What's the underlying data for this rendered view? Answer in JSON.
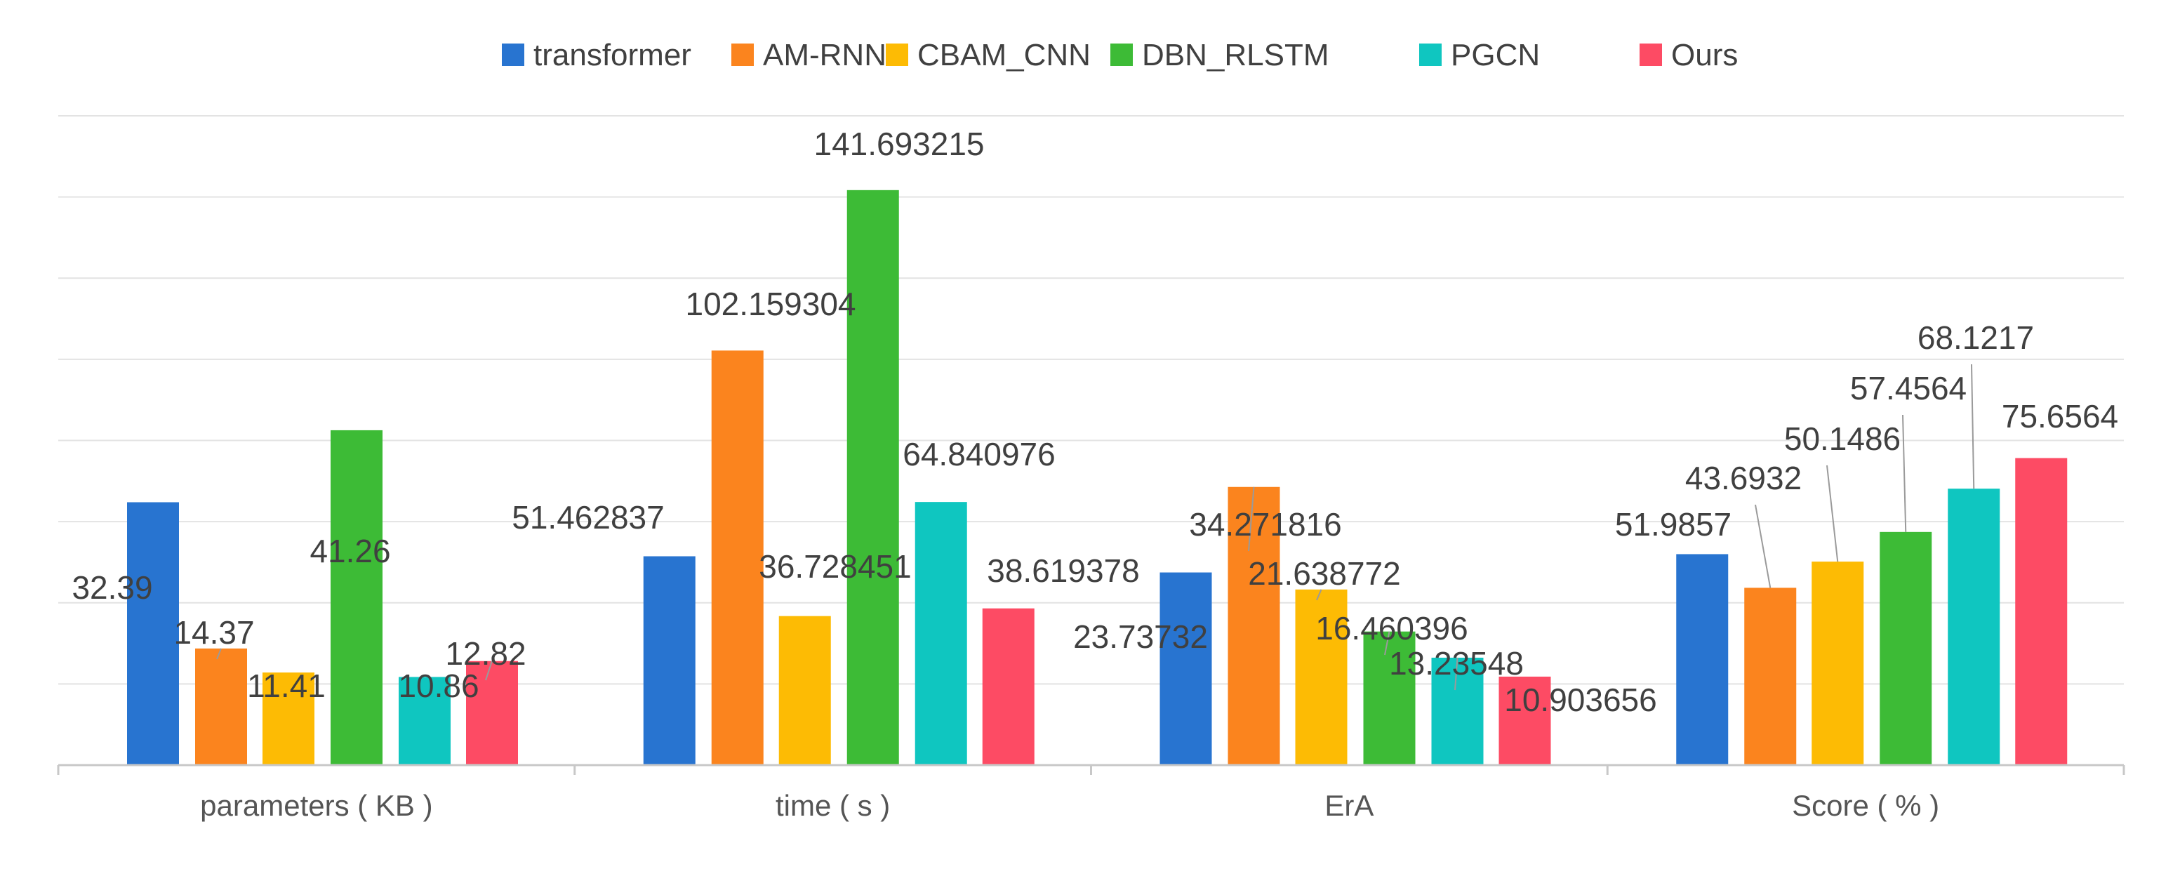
{
  "chart_data": {
    "type": "bar",
    "title": "",
    "xlabel": "",
    "ylabel": "",
    "categories": [
      "parameters ( KB )",
      "time ( s )",
      "ErA",
      "Score ( % )"
    ],
    "series": [
      {
        "name": "transformer",
        "color": "#2874d0",
        "values": [
          32.39,
          51.462837,
          23.73732,
          51.9857
        ]
      },
      {
        "name": "AM-RNN",
        "color": "#fb841e",
        "values": [
          14.37,
          102.159304,
          34.271816,
          43.6932
        ]
      },
      {
        "name": "CBAM_CNN",
        "color": "#fdbb04",
        "values": [
          11.41,
          36.728451,
          21.638772,
          50.1486
        ]
      },
      {
        "name": "DBN_RLSTM",
        "color": "#3dbb36",
        "values": [
          41.26,
          141.693215,
          16.460396,
          57.4564
        ]
      },
      {
        "name": "PGCN",
        "color": "#0fc6c0",
        "values": [
          10.86,
          64.840976,
          13.23548,
          68.1217
        ]
      },
      {
        "name": "Ours",
        "color": "#fd4b64",
        "values": [
          12.82,
          38.619378,
          10.903656,
          75.6564
        ]
      }
    ],
    "value_labels": [
      [
        "32.39",
        "14.37",
        "11.41",
        "41.26",
        "10.86",
        "12.82"
      ],
      [
        "51.462837",
        "102.159304",
        "36.728451",
        "141.693215",
        "64.840976",
        "38.619378"
      ],
      [
        "23.73732",
        "34.271816",
        "21.638772",
        "16.460396",
        "13.23548",
        "10.903656"
      ],
      [
        "51.9857",
        "43.6932",
        "50.1486",
        "57.4564",
        "68.1217",
        "75.6564"
      ]
    ],
    "axis_per_category_max": [
      80,
      160,
      80,
      160
    ],
    "ylim": [
      0,
      160
    ],
    "gridlines": 8,
    "grid": true,
    "legend": "top-center"
  }
}
